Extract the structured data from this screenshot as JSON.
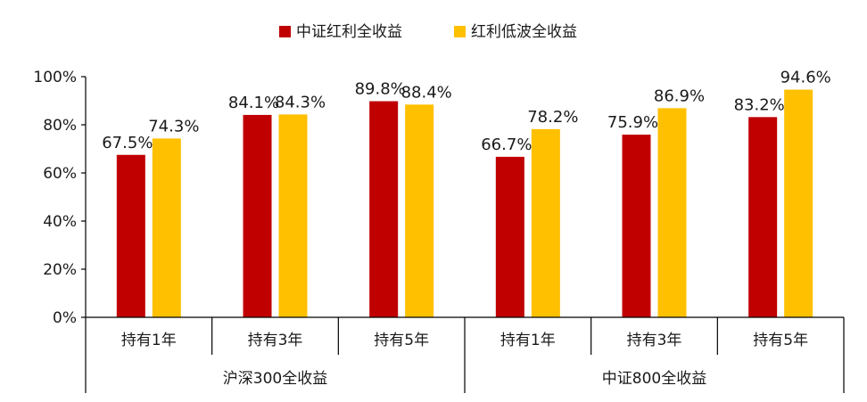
{
  "chart_data": {
    "type": "bar",
    "title": "",
    "xlabel": "",
    "ylabel": "",
    "ylim": [
      0,
      100
    ],
    "yticks": [
      "0%",
      "20%",
      "40%",
      "60%",
      "80%",
      "100%"
    ],
    "grid": false,
    "legend_position": "top-center",
    "groups": [
      {
        "label": "沪深300全收益",
        "categories": [
          "持有1年",
          "持有3年",
          "持有5年"
        ]
      },
      {
        "label": "中证800全收益",
        "categories": [
          "持有1年",
          "持有3年",
          "持有5年"
        ]
      }
    ],
    "series": [
      {
        "name": "中证红利全收益",
        "color": "#C00000",
        "values": [
          67.5,
          84.1,
          89.8,
          66.7,
          75.9,
          83.2
        ],
        "labels": [
          "67.5%",
          "84.1%",
          "89.8%",
          "66.7%",
          "75.9%",
          "83.2%"
        ]
      },
      {
        "name": "红利低波全收益",
        "color": "#FFC000",
        "values": [
          74.3,
          84.3,
          88.4,
          78.2,
          86.9,
          94.6
        ],
        "labels": [
          "74.3%",
          "84.3%",
          "88.4%",
          "78.2%",
          "86.9%",
          "94.6%"
        ]
      }
    ]
  }
}
